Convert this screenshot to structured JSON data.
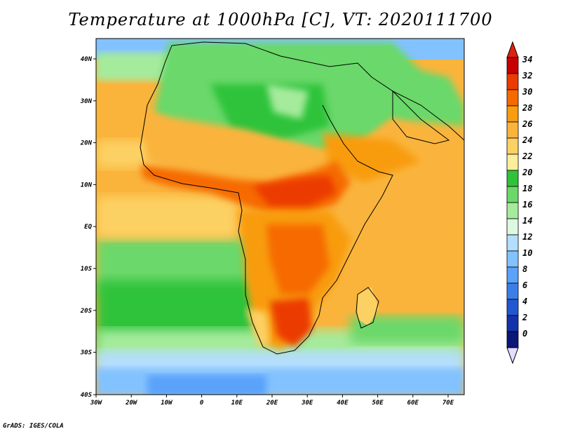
{
  "title": "Temperature at 1000hPa [C], VT: 2020111700",
  "footer": "GrADS: IGES/COLA",
  "lat_labels": [
    "40N",
    "30N",
    "20N",
    "10N",
    "EQ",
    "10S",
    "20S",
    "30S",
    "40S"
  ],
  "lon_labels": [
    "30W",
    "20W",
    "10W",
    "0",
    "10E",
    "20E",
    "30E",
    "40E",
    "50E",
    "60E",
    "70E"
  ],
  "colorbar": {
    "labels": [
      "34",
      "32",
      "30",
      "28",
      "26",
      "24",
      "22",
      "20",
      "18",
      "16",
      "14",
      "12",
      "10",
      "8",
      "6",
      "4",
      "2",
      "0"
    ],
    "colors": [
      "#c80000",
      "#ec3a00",
      "#f66a00",
      "#f89c10",
      "#fab43c",
      "#fcd164",
      "#fdee9c",
      "#2fc33a",
      "#6bd86a",
      "#a5eb9c",
      "#dcf8e0",
      "#b4deff",
      "#82c2ff",
      "#5aa2fa",
      "#3c7ee8",
      "#2356d2",
      "#1432aa",
      "#0a1678"
    ],
    "top_color": "#e0200c",
    "bottom_color": "#e6dcff"
  }
}
